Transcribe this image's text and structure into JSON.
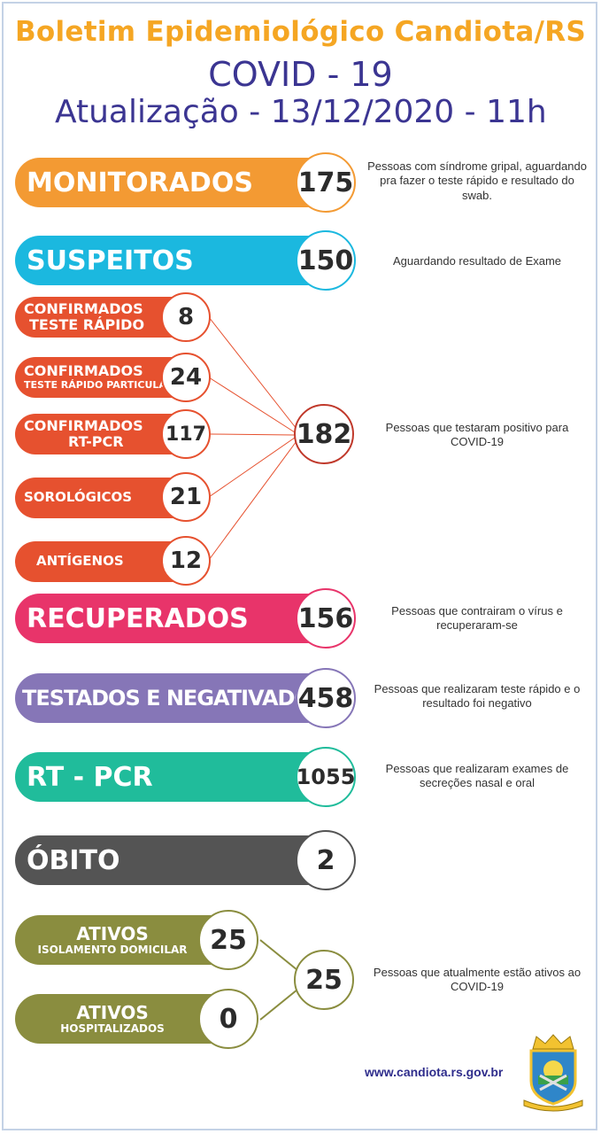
{
  "header": {
    "title": "Boletim Epidemiológico Candiota/RS",
    "subtitle": "COVID - 19",
    "update": "Atualização - 13/12/2020 - 11h"
  },
  "colors": {
    "orange": "#f39a33",
    "cyan": "#1bb8df",
    "red": "#e6512f",
    "pink": "#e8346a",
    "purple": "#8676b7",
    "teal": "#20bc9b",
    "gray": "#545454",
    "olive": "#8a8d3f",
    "title_orange": "#f5a623",
    "title_navy": "#3b3592"
  },
  "stats": {
    "monitorados": {
      "label": "MONITORADOS",
      "value": "175",
      "desc": "Pessoas com síndrome gripal, aguardando pra fazer o teste rápido e resultado do swab."
    },
    "suspeitos": {
      "label": "SUSPEITOS",
      "value": "150",
      "desc": "Aguardando resultado de Exame"
    },
    "conf_teste_rapido": {
      "label1": "CONFIRMADOS",
      "label2": "TESTE RÁPIDO",
      "value": "8"
    },
    "conf_particular": {
      "label1": "CONFIRMADOS",
      "label2": "TESTE RÁPIDO PARTICULAR",
      "value": "24"
    },
    "conf_rtpcr": {
      "label1": "CONFIRMADOS",
      "label2": "RT-PCR",
      "value": "117"
    },
    "sorologicos": {
      "label": "SOROLÓGICOS",
      "value": "21"
    },
    "antigenos": {
      "label": "ANTÍGENOS",
      "value": "12"
    },
    "confirmados_total": {
      "value": "182",
      "desc": "Pessoas que testaram positivo para COVID-19"
    },
    "recuperados": {
      "label": "RECUPERADOS",
      "value": "156",
      "desc": "Pessoas que contrairam o vírus e recuperaram-se"
    },
    "negativados": {
      "label": "TESTADOS E NEGATIVADOS",
      "value": "458",
      "desc": "Pessoas que realizaram teste rápido e o resultado foi negativo"
    },
    "rtpcr": {
      "label": "RT - PCR",
      "value": "1055",
      "desc": "Pessoas que realizaram exames de secreções nasal e oral"
    },
    "obito": {
      "label": "ÓBITO",
      "value": "2"
    },
    "ativos_isolamento": {
      "label1": "ATIVOS",
      "label2": "ISOLAMENTO DOMICILAR",
      "value": "25"
    },
    "ativos_hospital": {
      "label1": "ATIVOS",
      "label2": "HOSPITALIZADOS",
      "value": "0"
    },
    "ativos_total": {
      "value": "25",
      "desc": "Pessoas que atualmente estão ativos ao COVID-19"
    }
  },
  "footer": {
    "website": "www.candiota.rs.gov.br",
    "crest_icon": "municipal-crest-icon"
  }
}
